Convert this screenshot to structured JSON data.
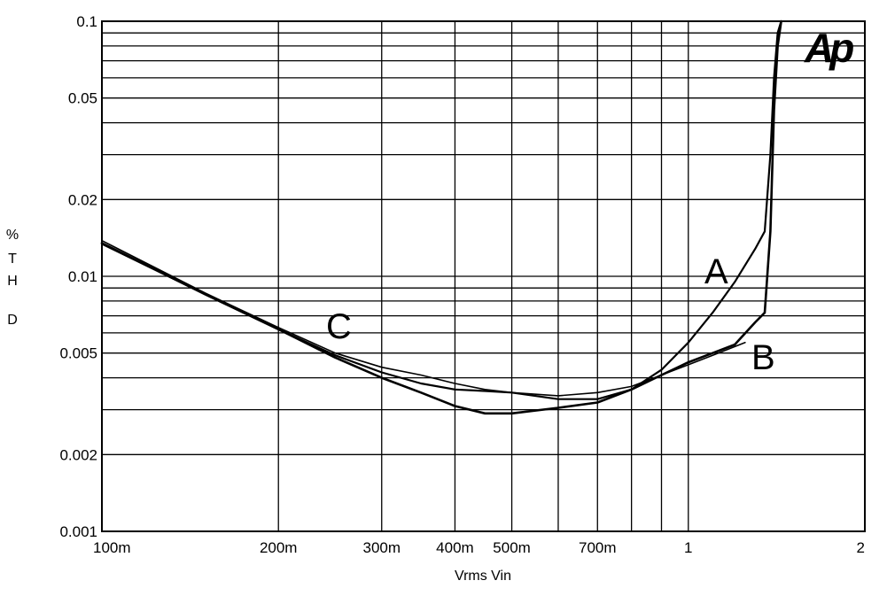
{
  "chart_data": {
    "type": "line",
    "logo": "Ap",
    "xlabel": "Vrms Vin",
    "ylabel": "% THD",
    "ylabel_lines": [
      "%",
      "T",
      "H",
      "D"
    ],
    "xscale": "log",
    "yscale": "log",
    "xlim": [
      0.1,
      2
    ],
    "ylim": [
      0.001,
      0.1
    ],
    "x_ticks": [
      {
        "value": 0.1,
        "label": "100m"
      },
      {
        "value": 0.2,
        "label": "200m"
      },
      {
        "value": 0.3,
        "label": "300m"
      },
      {
        "value": 0.4,
        "label": "400m"
      },
      {
        "value": 0.5,
        "label": "500m"
      },
      {
        "value": 0.7,
        "label": "700m"
      },
      {
        "value": 1,
        "label": "1"
      },
      {
        "value": 2,
        "label": "2"
      }
    ],
    "y_ticks": [
      {
        "value": 0.001,
        "label": "0.001"
      },
      {
        "value": 0.002,
        "label": "0.002"
      },
      {
        "value": 0.005,
        "label": "0.005"
      },
      {
        "value": 0.01,
        "label": "0.01"
      },
      {
        "value": 0.02,
        "label": "0.02"
      },
      {
        "value": 0.05,
        "label": "0.05"
      },
      {
        "value": 0.1,
        "label": "0.1"
      }
    ],
    "grid": true,
    "series": [
      {
        "name": "A",
        "x": [
          0.1,
          0.15,
          0.2,
          0.25,
          0.3,
          0.35,
          0.4,
          0.45,
          0.5,
          0.6,
          0.7,
          0.8,
          0.9,
          1.0,
          1.1,
          1.2,
          1.3,
          1.35,
          1.38,
          1.4,
          1.42,
          1.44
        ],
        "y": [
          0.0134,
          0.0085,
          0.0062,
          0.0049,
          0.0042,
          0.0038,
          0.0036,
          0.00355,
          0.0035,
          0.0033,
          0.0033,
          0.0036,
          0.0043,
          0.0055,
          0.0072,
          0.0095,
          0.0128,
          0.015,
          0.03,
          0.06,
          0.09,
          0.1
        ]
      },
      {
        "name": "B",
        "x": [
          0.1,
          0.15,
          0.2,
          0.25,
          0.3,
          0.35,
          0.4,
          0.45,
          0.5,
          0.6,
          0.7,
          0.8,
          0.9,
          1.0,
          1.1,
          1.2,
          1.3,
          1.35,
          1.38,
          1.4,
          1.42,
          1.44
        ],
        "y": [
          0.0135,
          0.0085,
          0.0062,
          0.0048,
          0.004,
          0.0035,
          0.0031,
          0.0029,
          0.0029,
          0.00305,
          0.0032,
          0.0036,
          0.0041,
          0.0046,
          0.005,
          0.0054,
          0.0066,
          0.0072,
          0.015,
          0.045,
          0.08,
          0.1
        ]
      },
      {
        "name": "C",
        "x": [
          0.1,
          0.15,
          0.2,
          0.25,
          0.3,
          0.35,
          0.4,
          0.45,
          0.5,
          0.6,
          0.7,
          0.8,
          0.9,
          1.0,
          1.1,
          1.2,
          1.25
        ],
        "y": [
          0.0138,
          0.0086,
          0.0063,
          0.005,
          0.0044,
          0.0041,
          0.0038,
          0.0036,
          0.0035,
          0.0034,
          0.0035,
          0.0037,
          0.0041,
          0.0045,
          0.0049,
          0.0053,
          0.0055
        ]
      }
    ],
    "curve_labels": [
      {
        "text": "A",
        "series": "A"
      },
      {
        "text": "B",
        "series": "B"
      },
      {
        "text": "C",
        "series": "C"
      }
    ]
  }
}
